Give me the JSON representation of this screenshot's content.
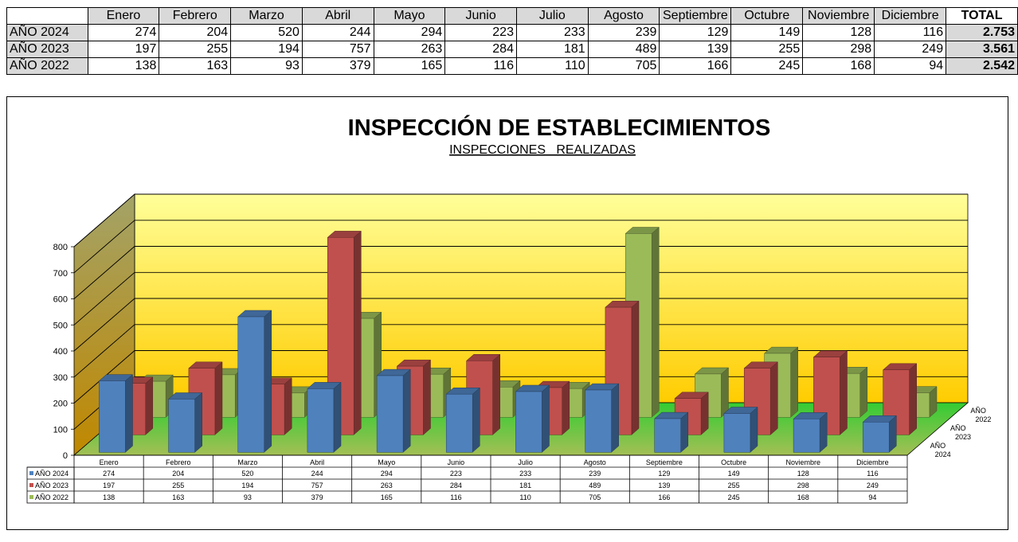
{
  "summary": {
    "header_total": "TOTAL",
    "months": [
      "Enero",
      "Febrero",
      "Marzo",
      "Abril",
      "Mayo",
      "Junio",
      "Julio",
      "Agosto",
      "Septiembre",
      "Octubre",
      "Noviembre",
      "Diciembre"
    ],
    "rows": [
      {
        "label": "AÑO 2024",
        "values": [
          "274",
          "204",
          "520",
          "244",
          "294",
          "223",
          "233",
          "239",
          "129",
          "149",
          "128",
          "116"
        ],
        "total": "2.753"
      },
      {
        "label": "AÑO 2023",
        "values": [
          "197",
          "255",
          "194",
          "757",
          "263",
          "284",
          "181",
          "489",
          "139",
          "255",
          "298",
          "249"
        ],
        "total": "3.561"
      },
      {
        "label": "AÑO 2022",
        "values": [
          "138",
          "163",
          "93",
          "379",
          "165",
          "116",
          "110",
          "705",
          "166",
          "245",
          "168",
          "94"
        ],
        "total": "2.542"
      }
    ]
  },
  "chart_data": {
    "type": "bar",
    "title": "INSPECCIÓN DE ESTABLECIMIENTOS",
    "subtitle": "INSPECCIONES   REALIZADAS",
    "categories": [
      "Enero",
      "Febrero",
      "Marzo",
      "Abril",
      "Mayo",
      "Junio",
      "Julio",
      "Agosto",
      "Septiembre",
      "Octubre",
      "Noviembre",
      "Diciembre"
    ],
    "series": [
      {
        "name": "AÑO 2024",
        "values": [
          274,
          204,
          520,
          244,
          294,
          223,
          233,
          239,
          129,
          149,
          128,
          116
        ]
      },
      {
        "name": "AÑO 2023",
        "values": [
          197,
          255,
          194,
          757,
          263,
          284,
          181,
          489,
          139,
          255,
          298,
          249
        ]
      },
      {
        "name": "AÑO 2022",
        "values": [
          138,
          163,
          93,
          379,
          165,
          116,
          110,
          705,
          166,
          245,
          168,
          94
        ]
      }
    ],
    "depth_labels": [
      [
        "AÑO",
        "2022"
      ],
      [
        "AÑO",
        "2023"
      ],
      [
        "AÑO",
        "2024"
      ]
    ],
    "ylim": [
      0,
      800
    ],
    "yticks": [
      0,
      100,
      200,
      300,
      400,
      500,
      600,
      700,
      800
    ],
    "grid": true,
    "legend": "data-table-below",
    "colors": {
      "AÑO 2024": "#4f81bd",
      "AÑO 2023": "#c0504d",
      "AÑO 2022": "#9bbb59",
      "wall_top": "#ffff99",
      "wall_bottom": "#ffcc00",
      "side_wall_top": "#a3a368",
      "side_wall_bottom": "#c08800",
      "floor_front": "#a4bf55",
      "floor_back": "#33cc33"
    }
  }
}
